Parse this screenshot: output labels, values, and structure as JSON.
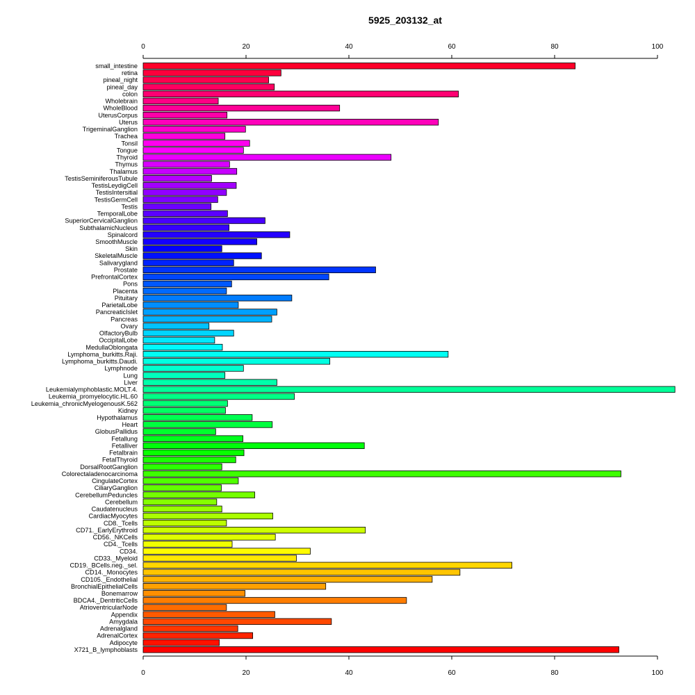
{
  "chart_data": {
    "type": "bar",
    "orientation": "horizontal",
    "title": "5925_203132_at",
    "xlim": [
      0,
      100
    ],
    "xticks": [
      0,
      20,
      40,
      60,
      80,
      100
    ],
    "xtick_labels": [
      "0",
      "20",
      "40",
      "60",
      "80",
      "100"
    ],
    "axes": [
      "top",
      "bottom"
    ],
    "grid": false,
    "legend": "none",
    "bar_outline": "#000000",
    "color_scheme": "rainbow",
    "categories": [
      "small_intestine",
      "retina",
      "pineal_night",
      "pineal_day",
      "colon",
      "Wholebrain",
      "WholeBlood",
      "UterusCorpus",
      "Uterus",
      "TrigeminalGanglion",
      "Trachea",
      "Tonsil",
      "Tongue",
      "Thyroid",
      "Thymus",
      "Thalamus",
      "TestisSeminiferousTubule",
      "TestisLeydigCell",
      "TestisIntersitial",
      "TestisGermCell",
      "Testis",
      "TemporalLobe",
      "SuperiorCervicalGanglion",
      "SubthalamicNucleus",
      "Spinalcord",
      "SmoothMuscle",
      "Skin",
      "SkeletalMuscle",
      "Salivarygland",
      "Prostate",
      "PrefrontalCortex",
      "Pons",
      "Placenta",
      "Pituitary",
      "ParietalLobe",
      "PancreaticIslet",
      "Pancreas",
      "Ovary",
      "OlfactoryBulb",
      "OccipitalLobe",
      "MedullaOblongata",
      "Lymphoma_burkitts.Raji.",
      "Lymphoma_burkitts.Daudi.",
      "Lymphnode",
      "Lung",
      "Liver",
      "Leukemialymphoblastic.MOLT.4.",
      "Leukemia_promyelocytic.HL.60",
      "Leukemia_chronicMyelogenousK.562",
      "Kidney",
      "Hypothalamus",
      "Heart",
      "GlobusPallidus",
      "Fetallung",
      "Fetalliver",
      "Fetalbrain",
      "FetalThyroid",
      "DorsalRootGanglion",
      "Colorectaladenocarcinoma",
      "CingulateCortex",
      "CiliaryGanglion",
      "CerebellumPeduncles",
      "Cerebellum",
      "Caudatenucleus",
      "CardiacMyocytes",
      "CD8._Tcells",
      "CD71._EarlyErythroid",
      "CD56._NKCells",
      "CD4._Tcells",
      "CD34.",
      "CD33._Myeloid",
      "CD19._BCells.neg._sel.",
      "CD14._Monocytes",
      "CD105._Endothelial",
      "BronchialEpithelialCells",
      "Bonemarrow",
      "BDCA4._DentriticCells",
      "AtrioventricularNode",
      "Appendix",
      "Amygdala",
      "Adrenalgland",
      "AdrenalCortex",
      "Adipocyte",
      "X721_B_lymphoblasts"
    ],
    "values": [
      84.0,
      26.8,
      24.4,
      25.5,
      61.3,
      14.6,
      38.2,
      16.3,
      57.4,
      19.9,
      15.9,
      20.7,
      19.5,
      48.2,
      16.8,
      18.2,
      13.3,
      18.1,
      16.2,
      14.5,
      13.2,
      16.4,
      23.7,
      16.7,
      28.5,
      22.1,
      15.3,
      23.0,
      17.6,
      45.2,
      36.1,
      17.2,
      16.2,
      28.9,
      18.5,
      26.0,
      25.0,
      12.8,
      17.6,
      13.9,
      15.4,
      59.3,
      36.3,
      19.5,
      15.9,
      26.0,
      103.4,
      29.4,
      16.4,
      16.0,
      21.2,
      25.1,
      14.1,
      19.4,
      43.0,
      19.6,
      18.0,
      15.3,
      92.9,
      18.5,
      15.2,
      21.7,
      14.3,
      15.3,
      25.2,
      16.2,
      43.2,
      25.7,
      17.3,
      32.5,
      29.8,
      71.7,
      61.6,
      56.2,
      35.5,
      19.8,
      51.2,
      16.2,
      25.6,
      36.6,
      18.4,
      21.3,
      14.8,
      92.5
    ]
  }
}
